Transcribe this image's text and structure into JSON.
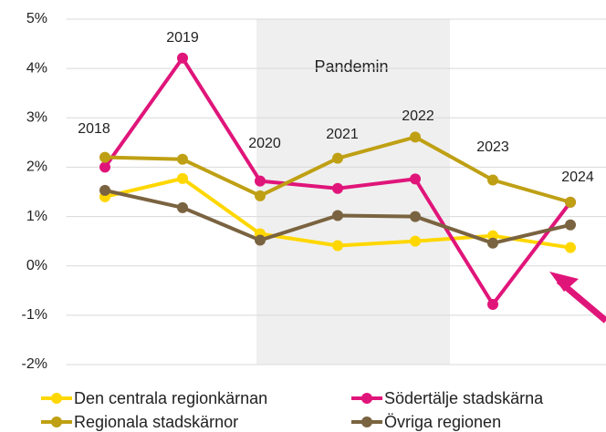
{
  "chart_data": {
    "type": "line",
    "categories": [
      "2018",
      "2019",
      "2020",
      "2021",
      "2022",
      "2023",
      "2024"
    ],
    "series": [
      {
        "name": "Den centrala regionkärnan",
        "color": "#ffd700",
        "values": [
          1.4,
          1.77,
          0.65,
          0.41,
          0.5,
          0.61,
          0.37
        ]
      },
      {
        "name": "Södertälje stadskärna",
        "color": "#e0157a",
        "values": [
          2.0,
          4.21,
          1.72,
          1.57,
          1.76,
          -0.78,
          1.29
        ]
      },
      {
        "name": "Regionala stadskärnor",
        "color": "#bfa014",
        "values": [
          2.2,
          2.16,
          1.42,
          2.18,
          2.61,
          1.74,
          1.29
        ]
      },
      {
        "name": "Övriga regionen",
        "color": "#7a6340",
        "values": [
          1.53,
          1.18,
          0.52,
          1.02,
          1.0,
          0.46,
          0.83
        ]
      }
    ],
    "ylim": [
      -2,
      5
    ],
    "yticks": [
      {
        "value": -2,
        "label": "-2%"
      },
      {
        "value": -1,
        "label": "-1%"
      },
      {
        "value": 0,
        "label": "0%"
      },
      {
        "value": 1,
        "label": "1%"
      },
      {
        "value": 2,
        "label": "2%"
      },
      {
        "value": 3,
        "label": "3%"
      },
      {
        "value": 4,
        "label": "4%"
      },
      {
        "value": 5,
        "label": "5%"
      }
    ],
    "grid": true,
    "shaded_region": {
      "label": "Pandemin"
    },
    "legend": "bottom"
  }
}
